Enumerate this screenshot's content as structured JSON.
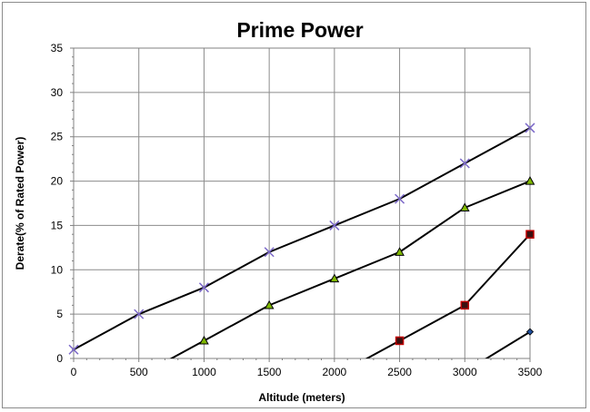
{
  "chart_data": {
    "type": "line",
    "title": "Prime Power",
    "xlabel": "Altitude (meters)",
    "ylabel": "Derate(% of Rated Power)",
    "xlim": [
      0,
      3500
    ],
    "ylim": [
      0,
      35
    ],
    "xticks": [
      0,
      500,
      1000,
      1500,
      2000,
      2500,
      3000,
      3500
    ],
    "yticks": [
      0,
      5,
      10,
      15,
      20,
      25,
      30,
      35
    ],
    "grid": true,
    "legend": "none",
    "series": [
      {
        "marker": "x",
        "marker_color": "#7b68c8",
        "x": [
          0,
          500,
          1000,
          1500,
          2000,
          2500,
          3000,
          3500
        ],
        "y": [
          1,
          5,
          8,
          12,
          15,
          18,
          22,
          26
        ]
      },
      {
        "marker": "triangle",
        "marker_color": "#7fb800",
        "x": [
          500,
          1000,
          1500,
          2000,
          2500,
          3000,
          3500
        ],
        "y": [
          -2,
          2,
          6,
          9,
          12,
          17,
          20
        ]
      },
      {
        "marker": "square",
        "marker_color": "#c00000",
        "x": [
          2000,
          2500,
          3000,
          3500
        ],
        "y": [
          -2,
          2,
          6,
          14
        ]
      },
      {
        "marker": "diamond",
        "marker_color": "#1f4e9c",
        "x": [
          3000,
          3500
        ],
        "y": [
          -1.5,
          3
        ]
      }
    ]
  }
}
